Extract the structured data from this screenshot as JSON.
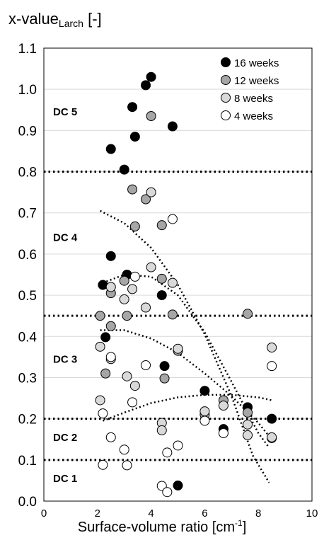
{
  "chart_data": {
    "type": "scatter",
    "ylabel": {
      "main": "x-value",
      "sub": "Larch",
      "unit": "[-]"
    },
    "xlabel": {
      "main": "Surface-volume ratio [cm",
      "sup": "-1",
      "end": "]"
    },
    "xlim": [
      0,
      10
    ],
    "ylim": [
      0,
      1.1
    ],
    "x_ticks": [
      0,
      2,
      4,
      6,
      8,
      10
    ],
    "y_ticks": [
      0.0,
      0.1,
      0.2,
      0.3,
      0.4,
      0.5,
      0.6,
      0.7,
      0.8,
      0.9,
      1.0,
      1.1
    ],
    "y_tick_labels": [
      "0.0",
      "0.1",
      "0.2",
      "0.3",
      "0.4",
      "0.5",
      "0.6",
      "0.7",
      "0.8",
      "0.9",
      "1.0",
      "1.1"
    ],
    "x_tick_labels": [
      "0",
      "2",
      "4",
      "6",
      "8",
      "10"
    ],
    "grid": "horizontal",
    "legend_position": "top-right",
    "thresholds": [
      0.8,
      0.45,
      0.2,
      0.1
    ],
    "zones": [
      {
        "label": "DC 5",
        "y": 0.945
      },
      {
        "label": "DC 4",
        "y": 0.64
      },
      {
        "label": "DC 3",
        "y": 0.345
      },
      {
        "label": "DC 2",
        "y": 0.155
      },
      {
        "label": "DC 1",
        "y": 0.055
      }
    ],
    "series": [
      {
        "name": "16 weeks",
        "fill": "#000000",
        "points": [
          [
            2.2,
            0.525
          ],
          [
            2.5,
            0.595
          ],
          [
            2.5,
            0.855
          ],
          [
            2.3,
            0.398
          ],
          [
            3.0,
            0.805
          ],
          [
            3.1,
            0.55
          ],
          [
            3.3,
            0.957
          ],
          [
            3.4,
            0.885
          ],
          [
            3.8,
            1.01
          ],
          [
            4.0,
            1.03
          ],
          [
            4.4,
            0.5
          ],
          [
            4.5,
            0.328
          ],
          [
            4.8,
            0.91
          ],
          [
            5.0,
            0.038
          ],
          [
            6.0,
            0.268
          ],
          [
            6.7,
            0.175
          ],
          [
            7.6,
            0.228
          ],
          [
            8.5,
            0.2
          ]
        ]
      },
      {
        "name": "12 weeks",
        "fill": "#a6a6a6",
        "points": [
          [
            2.1,
            0.45
          ],
          [
            2.3,
            0.31
          ],
          [
            2.5,
            0.425
          ],
          [
            2.5,
            0.505
          ],
          [
            3.0,
            0.535
          ],
          [
            3.1,
            0.45
          ],
          [
            3.3,
            0.757
          ],
          [
            3.4,
            0.667
          ],
          [
            3.8,
            0.733
          ],
          [
            4.0,
            0.935
          ],
          [
            4.4,
            0.67
          ],
          [
            4.4,
            0.54
          ],
          [
            4.5,
            0.298
          ],
          [
            4.8,
            0.453
          ],
          [
            5.0,
            0.365
          ],
          [
            6.0,
            0.21
          ],
          [
            6.7,
            0.245
          ],
          [
            7.6,
            0.455
          ],
          [
            7.6,
            0.215
          ],
          [
            8.5,
            0.153
          ]
        ]
      },
      {
        "name": "8 weeks",
        "fill": "#d9d9d9",
        "points": [
          [
            2.1,
            0.375
          ],
          [
            2.1,
            0.245
          ],
          [
            2.5,
            0.52
          ],
          [
            2.5,
            0.345
          ],
          [
            3.0,
            0.49
          ],
          [
            3.1,
            0.303
          ],
          [
            3.3,
            0.515
          ],
          [
            3.4,
            0.28
          ],
          [
            3.8,
            0.47
          ],
          [
            4.0,
            0.75
          ],
          [
            4.0,
            0.568
          ],
          [
            4.4,
            0.19
          ],
          [
            4.4,
            0.172
          ],
          [
            4.8,
            0.53
          ],
          [
            5.0,
            0.37
          ],
          [
            6.0,
            0.218
          ],
          [
            6.7,
            0.232
          ],
          [
            7.6,
            0.186
          ],
          [
            7.6,
            0.16
          ],
          [
            8.5,
            0.373
          ],
          [
            8.5,
            0.155
          ]
        ]
      },
      {
        "name": "4 weeks",
        "fill": "#ffffff",
        "points": [
          [
            2.2,
            0.088
          ],
          [
            2.2,
            0.213
          ],
          [
            2.5,
            0.155
          ],
          [
            2.5,
            0.35
          ],
          [
            3.0,
            0.125
          ],
          [
            3.1,
            0.087
          ],
          [
            3.3,
            0.24
          ],
          [
            3.4,
            0.545
          ],
          [
            3.8,
            0.33
          ],
          [
            4.4,
            0.037
          ],
          [
            4.6,
            0.022
          ],
          [
            4.6,
            0.118
          ],
          [
            4.8,
            0.685
          ],
          [
            5.0,
            0.135
          ],
          [
            6.0,
            0.195
          ],
          [
            6.7,
            0.165
          ],
          [
            8.5,
            0.328
          ]
        ]
      }
    ],
    "trendlines": [
      {
        "points": [
          [
            2.1,
            0.705
          ],
          [
            3.0,
            0.675
          ],
          [
            4.0,
            0.615
          ],
          [
            5.0,
            0.525
          ],
          [
            6.0,
            0.405
          ],
          [
            7.0,
            0.255
          ],
          [
            7.8,
            0.11
          ],
          [
            8.4,
            0.045
          ]
        ]
      },
      {
        "points": [
          [
            2.2,
            0.53
          ],
          [
            3.0,
            0.55
          ],
          [
            4.0,
            0.545
          ],
          [
            5.0,
            0.5
          ],
          [
            6.0,
            0.41
          ],
          [
            7.0,
            0.29
          ],
          [
            8.0,
            0.165
          ],
          [
            8.4,
            0.13
          ]
        ]
      },
      {
        "points": [
          [
            2.1,
            0.415
          ],
          [
            3.0,
            0.415
          ],
          [
            4.0,
            0.395
          ],
          [
            5.0,
            0.36
          ],
          [
            6.0,
            0.31
          ],
          [
            7.0,
            0.255
          ],
          [
            8.0,
            0.19
          ],
          [
            8.5,
            0.15
          ]
        ]
      },
      {
        "points": [
          [
            2.2,
            0.195
          ],
          [
            3.0,
            0.215
          ],
          [
            4.0,
            0.238
          ],
          [
            5.0,
            0.252
          ],
          [
            6.0,
            0.258
          ],
          [
            7.0,
            0.258
          ],
          [
            8.0,
            0.252
          ],
          [
            8.5,
            0.245
          ]
        ]
      }
    ]
  }
}
